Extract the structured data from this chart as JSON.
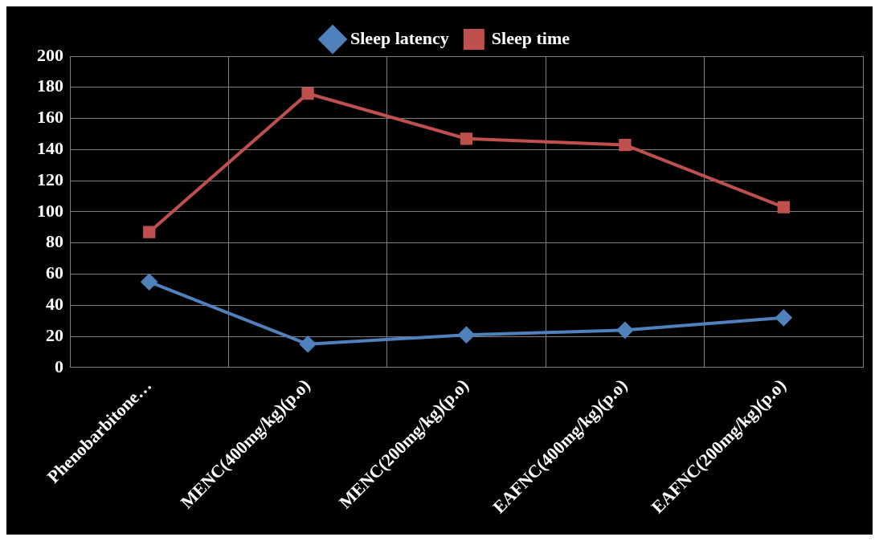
{
  "chart_data": {
    "type": "line",
    "categories": [
      "Phenobarbitone…",
      "MENC(400mg/kg)(p.o)",
      "MENC(200mg/kg)(p.o)",
      "EAFNC(400mg/kg)(p.o)",
      "EAFNC(200mg/kg)(p.o)"
    ],
    "series": [
      {
        "name": "Sleep latency",
        "color": "#4f81bd",
        "marker": "diamond",
        "values": [
          55,
          15,
          21,
          24,
          32
        ]
      },
      {
        "name": "Sleep time",
        "color": "#c0504d",
        "marker": "square",
        "values": [
          87,
          176,
          147,
          143,
          103
        ]
      }
    ],
    "ylim": [
      0,
      200
    ],
    "yticks": [
      0,
      20,
      40,
      60,
      80,
      100,
      120,
      140,
      160,
      180,
      200
    ],
    "grid": true,
    "legend": "top"
  }
}
